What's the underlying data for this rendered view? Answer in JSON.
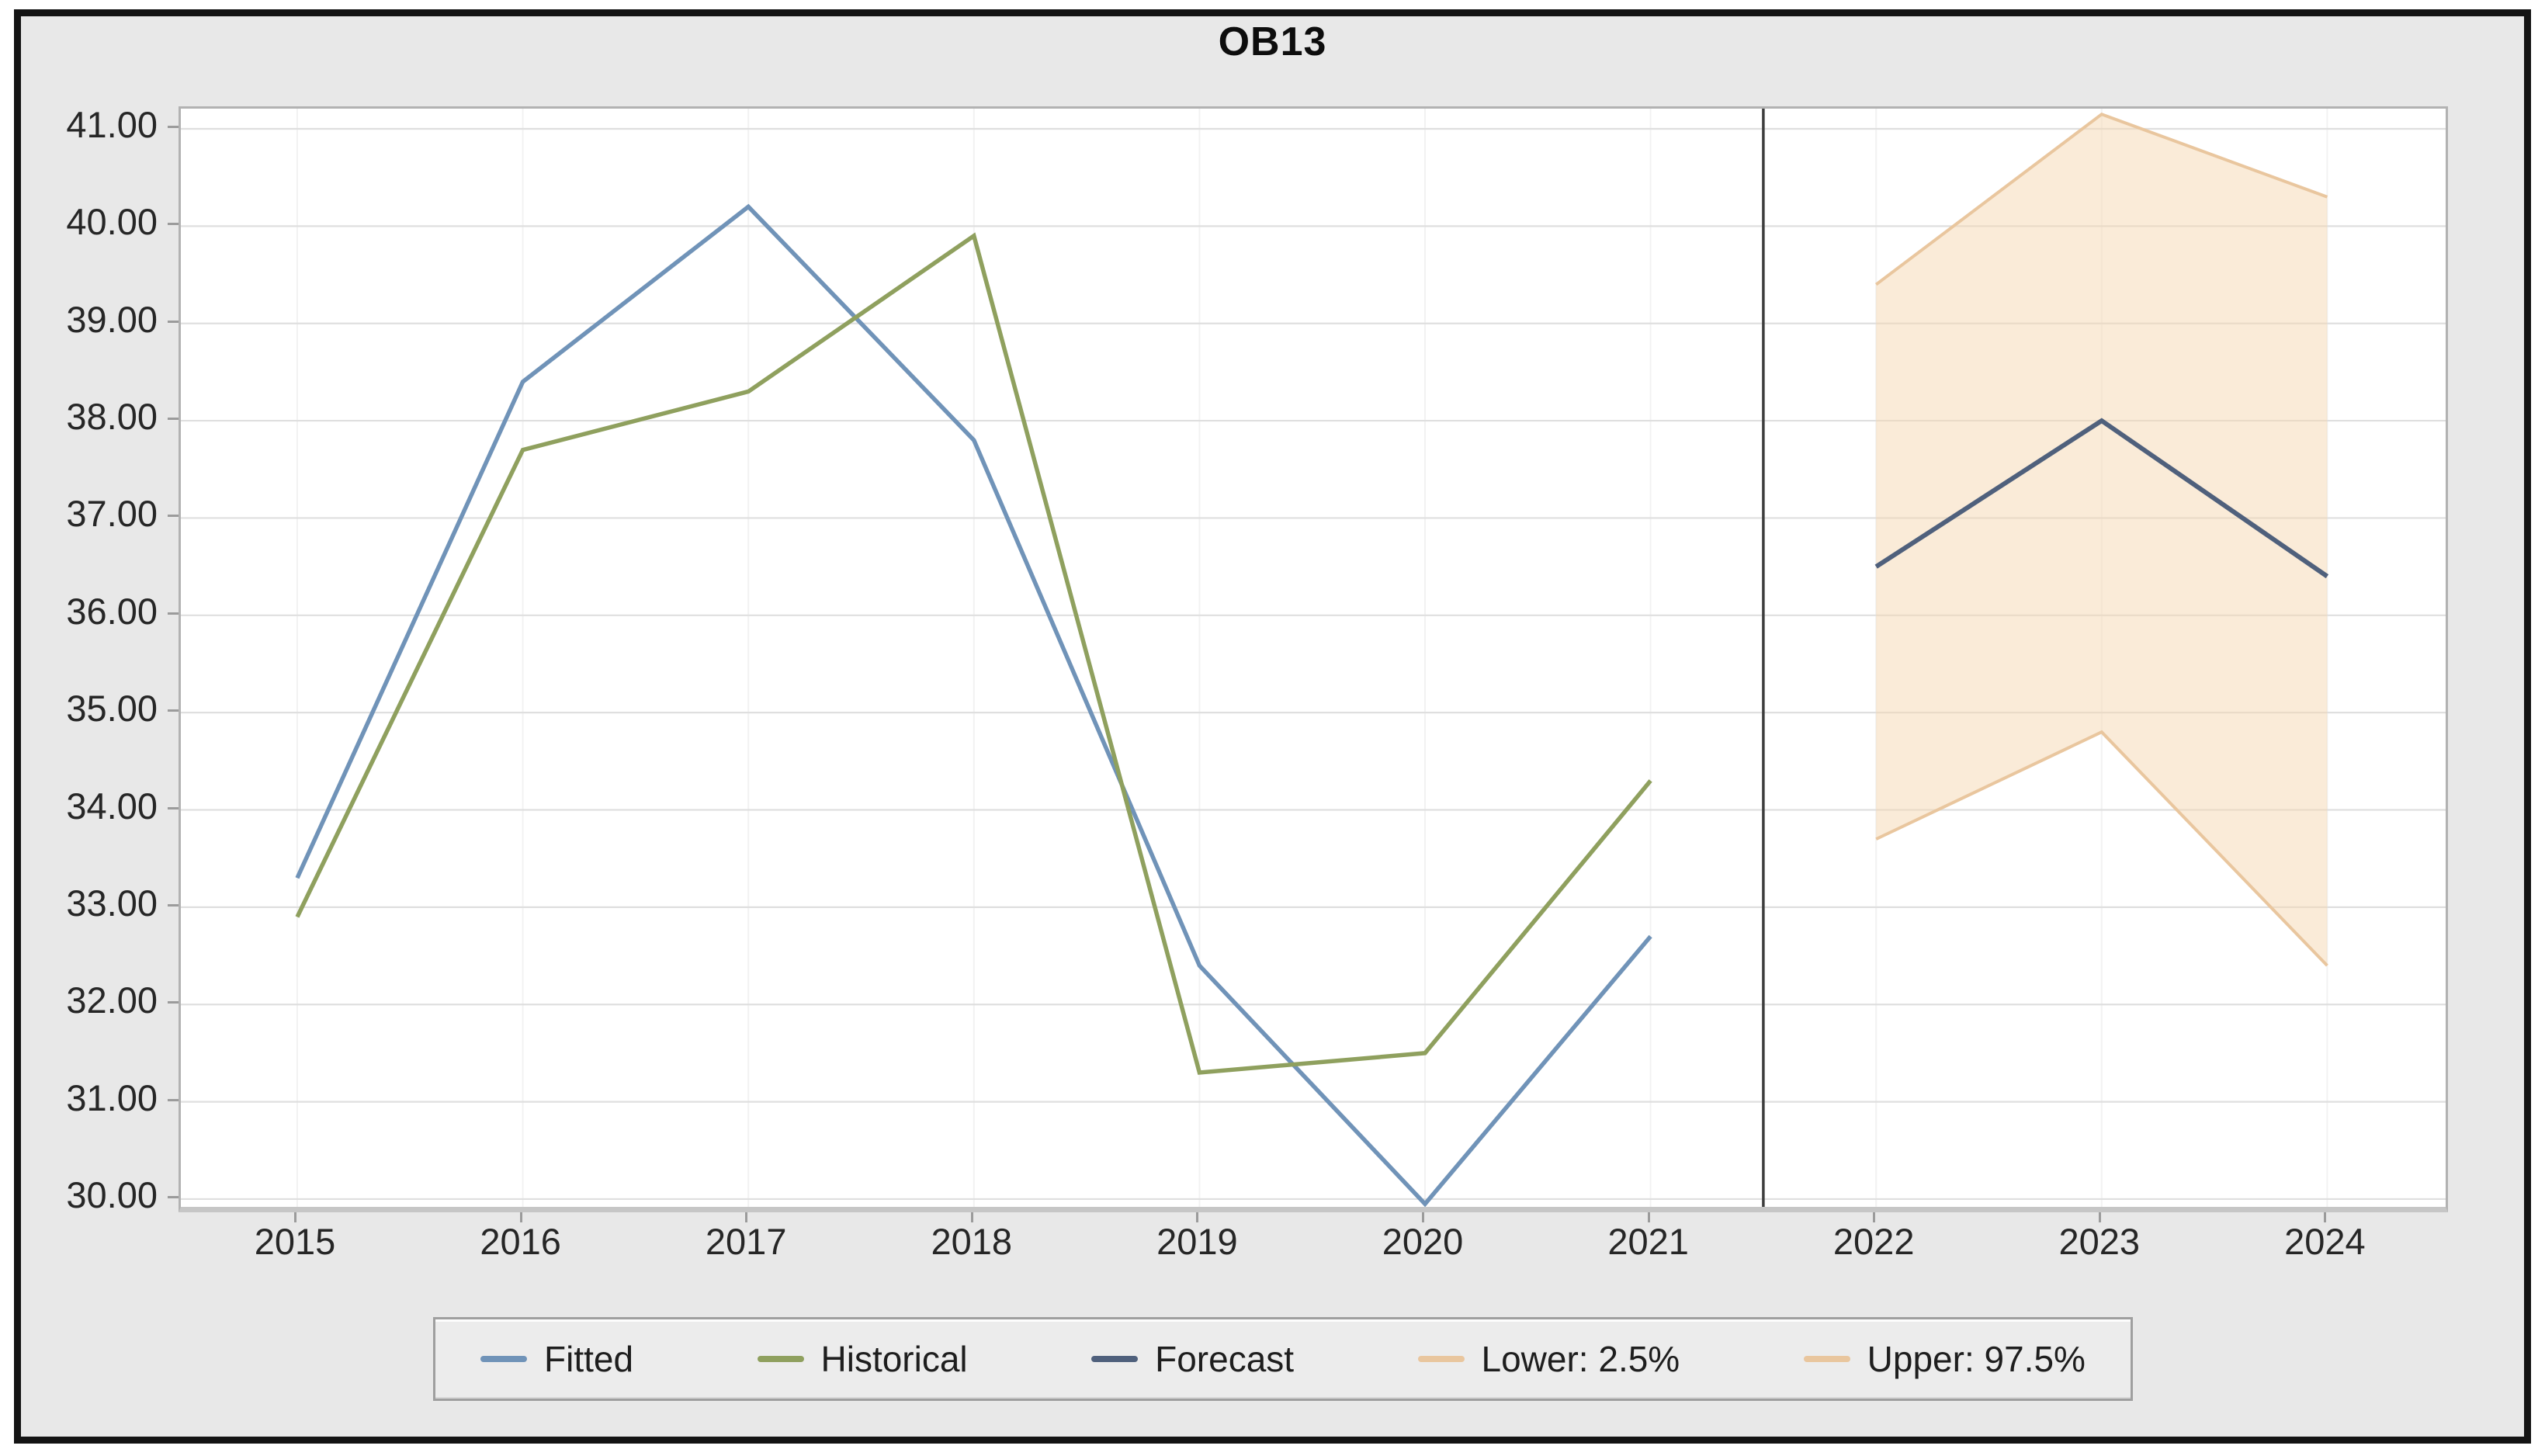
{
  "title": "OB13",
  "chart_data": {
    "type": "line",
    "title": "OB13",
    "xlabel": "",
    "ylabel": "",
    "grid": true,
    "legend_position": "bottom",
    "ylim": [
      29.9,
      41.2
    ],
    "divider_between": [
      "2021",
      "2022"
    ],
    "x_axis": {
      "tick_values": [
        2015,
        2016,
        2017,
        2018,
        2019,
        2020,
        2021,
        2022,
        2023,
        2024
      ],
      "tick_labels": [
        "2015",
        "2016",
        "2017",
        "2018",
        "2019",
        "2020",
        "2021",
        "2022",
        "2023",
        "2024"
      ]
    },
    "y_axis": {
      "tick_values": [
        41,
        40,
        39,
        38,
        37,
        36,
        35,
        34,
        33,
        32,
        31,
        30
      ],
      "tick_labels": [
        "41.00",
        "40.00",
        "39.00",
        "38.00",
        "37.00",
        "36.00",
        "35.00",
        "34.00",
        "33.00",
        "32.00",
        "31.00",
        "30.00"
      ]
    },
    "series": [
      {
        "name": "Fitted",
        "role": "line",
        "color": "#7093b8",
        "x": [
          2015,
          2016,
          2017,
          2018,
          2019,
          2020,
          2021
        ],
        "values": [
          33.3,
          38.4,
          40.2,
          37.8,
          32.4,
          29.95,
          32.7
        ]
      },
      {
        "name": "Historical",
        "role": "line",
        "color": "#8fa05e",
        "x": [
          2015,
          2016,
          2017,
          2018,
          2019,
          2020,
          2021
        ],
        "values": [
          32.9,
          37.7,
          38.3,
          39.9,
          31.3,
          31.5,
          34.3
        ]
      },
      {
        "name": "Forecast",
        "role": "line",
        "color": "#4f607c",
        "x": [
          2022,
          2023,
          2024
        ],
        "values": [
          36.5,
          38.0,
          36.4
        ]
      },
      {
        "name": "Lower: 2.5%",
        "role": "band-lower",
        "color": "#e9c69e",
        "x": [
          2022,
          2023,
          2024
        ],
        "values": [
          33.7,
          34.8,
          32.4
        ]
      },
      {
        "name": "Upper: 97.5%",
        "role": "band-upper",
        "color": "#e9c69e",
        "x": [
          2022,
          2023,
          2024
        ],
        "values": [
          39.4,
          41.15,
          40.3
        ]
      }
    ],
    "band": {
      "fill": "rgba(246,215,178,0.5)",
      "edge_color": "#e9c69e"
    }
  },
  "colors": {
    "canvas_bg": "#e8e8e8",
    "plot_bg": "#ffffff",
    "gridline": "#dfdfdf",
    "minor_vertical_gridline": "#f2f2f2",
    "divider": "#3d3d3d",
    "frame_border": "#141414",
    "tick_text": "#262626"
  }
}
